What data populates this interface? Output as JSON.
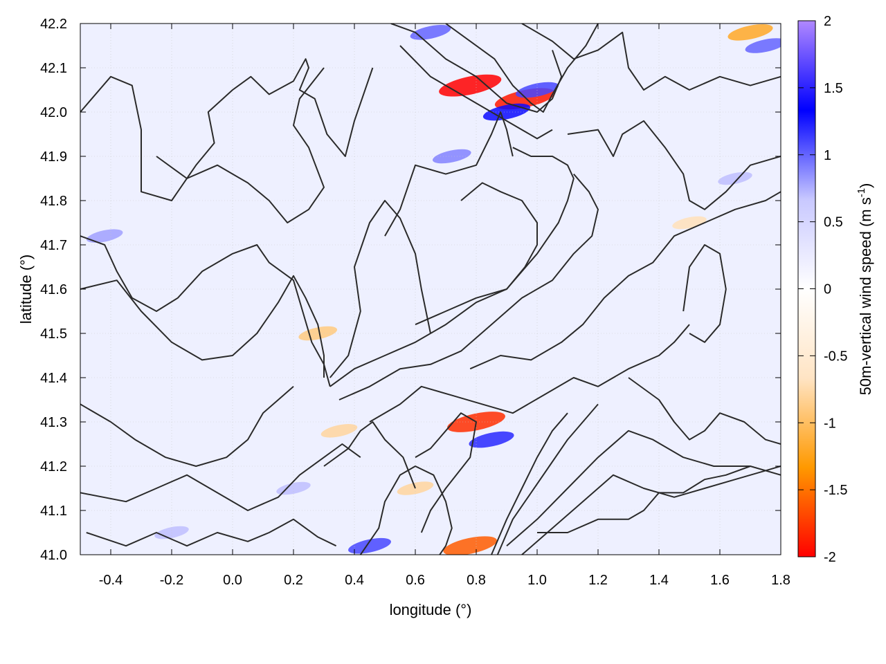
{
  "chart_data": {
    "type": "heatmap",
    "xlabel": "longitude (°)",
    "ylabel": "latitude (°)",
    "colorbar_label": "50m-vertical wind speed (m s",
    "colorbar_label_sup": "-1",
    "colorbar_label_close": ")",
    "xlim": [
      -0.5,
      1.8
    ],
    "ylim": [
      41.0,
      42.2
    ],
    "x_ticks": [
      "-0.4",
      "-0.2",
      "0.0",
      "0.2",
      "0.4",
      "0.6",
      "0.8",
      "1.0",
      "1.2",
      "1.4",
      "1.6",
      "1.8"
    ],
    "y_ticks": [
      "41.0",
      "41.1",
      "41.2",
      "41.3",
      "41.4",
      "41.5",
      "41.6",
      "41.7",
      "41.8",
      "41.9",
      "42.0",
      "42.1",
      "42.2"
    ],
    "colorbar_ticks": [
      "2",
      "1.5",
      "1",
      "0.5",
      "0",
      "-0.5",
      "-1",
      "-1.5",
      "-2"
    ],
    "clim": [
      -2,
      2
    ],
    "grid": true,
    "colormap": [
      "#ff0000",
      "#ff9900",
      "#ffe4c4",
      "#ffffff",
      "#c8c8ff",
      "#0000ff",
      "#b088ff"
    ],
    "contour_color": "#2a2a2a",
    "hotspots": [
      {
        "lon": 0.78,
        "lat": 42.06,
        "value": -2.0
      },
      {
        "lon": 0.96,
        "lat": 42.03,
        "value": -1.9
      },
      {
        "lon": 0.9,
        "lat": 42.0,
        "value": 1.3
      },
      {
        "lon": 1.0,
        "lat": 42.05,
        "value": 1.1
      },
      {
        "lon": 0.8,
        "lat": 41.3,
        "value": -1.8
      },
      {
        "lon": 0.85,
        "lat": 41.26,
        "value": 1.2
      },
      {
        "lon": 0.78,
        "lat": 41.02,
        "value": -1.6
      },
      {
        "lon": 0.45,
        "lat": 41.02,
        "value": 1.1
      },
      {
        "lon": 1.7,
        "lat": 42.18,
        "value": -1.2
      },
      {
        "lon": 1.75,
        "lat": 42.15,
        "value": 1.0
      },
      {
        "lon": 0.65,
        "lat": 42.18,
        "value": 1.0
      },
      {
        "lon": 0.28,
        "lat": 41.5,
        "value": -0.9
      },
      {
        "lon": -0.42,
        "lat": 41.72,
        "value": 0.8
      },
      {
        "lon": 0.72,
        "lat": 41.9,
        "value": 0.9
      },
      {
        "lon": 0.35,
        "lat": 41.28,
        "value": -0.8
      },
      {
        "lon": 0.6,
        "lat": 41.15,
        "value": -0.8
      },
      {
        "lon": 1.5,
        "lat": 41.75,
        "value": -0.7
      },
      {
        "lon": 1.65,
        "lat": 41.85,
        "value": 0.7
      },
      {
        "lon": 0.2,
        "lat": 41.15,
        "value": 0.7
      },
      {
        "lon": -0.2,
        "lat": 41.05,
        "value": 0.7
      }
    ],
    "contours": [
      {
        "lon": [
          -0.5,
          -0.4,
          -0.33,
          -0.3,
          -0.3,
          -0.2,
          -0.12,
          -0.06,
          -0.08,
          0.0,
          0.06,
          0.12,
          0.2,
          0.24,
          0.25,
          0.22,
          0.27,
          0.31,
          0.37,
          0.4,
          0.46
        ],
        "lat": [
          42.0,
          42.08,
          42.06,
          41.96,
          41.82,
          41.8,
          41.88,
          41.93,
          42.0,
          42.05,
          42.08,
          42.04,
          42.07,
          42.12,
          42.1,
          42.05,
          42.03,
          41.95,
          41.9,
          41.98,
          42.1
        ]
      },
      {
        "lon": [
          -0.25,
          -0.15,
          -0.05,
          0.05,
          0.12,
          0.18,
          0.25,
          0.3,
          0.25,
          0.2,
          0.22,
          0.3
        ],
        "lat": [
          41.9,
          41.85,
          41.88,
          41.84,
          41.8,
          41.75,
          41.78,
          41.83,
          41.92,
          41.97,
          42.03,
          42.1
        ]
      },
      {
        "lon": [
          -0.5,
          -0.42,
          -0.38,
          -0.33,
          -0.25,
          -0.18,
          -0.1,
          0.0,
          0.08,
          0.12,
          0.2,
          0.23,
          0.26,
          0.3,
          0.32
        ],
        "lat": [
          41.72,
          41.7,
          41.64,
          41.58,
          41.55,
          41.58,
          41.64,
          41.68,
          41.7,
          41.66,
          41.62,
          41.55,
          41.48,
          41.43,
          41.38
        ]
      },
      {
        "lon": [
          -0.5,
          -0.38,
          -0.3,
          -0.2,
          -0.1,
          0.0,
          0.08,
          0.15,
          0.2,
          0.24,
          0.28,
          0.3,
          0.3
        ],
        "lat": [
          41.6,
          41.62,
          41.55,
          41.48,
          41.44,
          41.45,
          41.5,
          41.57,
          41.63,
          41.58,
          41.52,
          41.45,
          41.4
        ]
      },
      {
        "lon": [
          -0.5,
          -0.4,
          -0.32,
          -0.22,
          -0.12,
          -0.02,
          0.05,
          0.1,
          0.15,
          0.2
        ],
        "lat": [
          41.34,
          41.3,
          41.26,
          41.22,
          41.2,
          41.22,
          41.26,
          41.32,
          41.35,
          41.38
        ]
      },
      {
        "lon": [
          -0.5,
          -0.35,
          -0.25,
          -0.15,
          -0.05,
          0.05,
          0.15,
          0.22,
          0.3,
          0.36,
          0.42
        ],
        "lat": [
          41.14,
          41.12,
          41.15,
          41.18,
          41.14,
          41.1,
          41.13,
          41.18,
          41.22,
          41.25,
          41.22
        ]
      },
      {
        "lon": [
          -0.48,
          -0.35,
          -0.25,
          -0.15,
          -0.05,
          0.05,
          0.12,
          0.2,
          0.28,
          0.34
        ],
        "lat": [
          41.05,
          41.02,
          41.05,
          41.02,
          41.05,
          41.03,
          41.05,
          41.08,
          41.04,
          41.02
        ]
      },
      {
        "lon": [
          0.32,
          0.38,
          0.42,
          0.4,
          0.45,
          0.5,
          0.55,
          0.6,
          0.62,
          0.65
        ],
        "lat": [
          41.4,
          41.45,
          41.55,
          41.65,
          41.75,
          41.8,
          41.76,
          41.68,
          41.6,
          41.5
        ]
      },
      {
        "lon": [
          0.32,
          0.4,
          0.5,
          0.6,
          0.7,
          0.8,
          0.9,
          1.0,
          1.07,
          1.1,
          1.12,
          1.1,
          1.05,
          0.98,
          0.92
        ],
        "lat": [
          41.38,
          41.42,
          41.45,
          41.48,
          41.52,
          41.57,
          41.6,
          41.68,
          41.75,
          41.8,
          41.85,
          41.88,
          41.9,
          41.9,
          41.92
        ]
      },
      {
        "lon": [
          0.35,
          0.45,
          0.55,
          0.65,
          0.75,
          0.85,
          0.95,
          1.05,
          1.12,
          1.18,
          1.2,
          1.17,
          1.12
        ],
        "lat": [
          41.35,
          41.38,
          41.42,
          41.43,
          41.46,
          41.52,
          41.58,
          41.62,
          41.68,
          41.72,
          41.78,
          41.82,
          41.86
        ]
      },
      {
        "lon": [
          0.6,
          0.7,
          0.8,
          0.9,
          0.96,
          1.0,
          1.0,
          0.95,
          0.88,
          0.82,
          0.75
        ],
        "lat": [
          41.52,
          41.55,
          41.58,
          41.6,
          41.65,
          41.7,
          41.75,
          41.8,
          41.82,
          41.84,
          41.8
        ]
      },
      {
        "lon": [
          0.5,
          0.55,
          0.6,
          0.7,
          0.8,
          0.85,
          0.88,
          0.9,
          0.92
        ],
        "lat": [
          41.72,
          41.78,
          41.88,
          41.86,
          41.88,
          41.95,
          42.0,
          41.96,
          41.9
        ]
      },
      {
        "lon": [
          0.52,
          0.6,
          0.7,
          0.8,
          0.9,
          1.0,
          1.05,
          1.08,
          1.05
        ],
        "lat": [
          42.2,
          42.18,
          42.12,
          42.08,
          42.02,
          42.0,
          42.03,
          42.08,
          42.14
        ]
      },
      {
        "lon": [
          0.55,
          0.65,
          0.75,
          0.85,
          0.95,
          1.0,
          1.05
        ],
        "lat": [
          42.15,
          42.08,
          42.04,
          42.0,
          41.96,
          41.94,
          41.96
        ]
      },
      {
        "lon": [
          0.7,
          0.78,
          0.86,
          0.92,
          0.98,
          1.02,
          1.05,
          1.1,
          1.16,
          1.2
        ],
        "lat": [
          42.2,
          42.16,
          42.12,
          42.06,
          42.02,
          42.0,
          42.04,
          42.1,
          42.15,
          42.2
        ]
      },
      {
        "lon": [
          0.95,
          1.05,
          1.12,
          1.2,
          1.28,
          1.3,
          1.35,
          1.42,
          1.5,
          1.6,
          1.7,
          1.8
        ],
        "lat": [
          42.2,
          42.16,
          42.12,
          42.14,
          42.18,
          42.1,
          42.05,
          42.08,
          42.05,
          42.08,
          42.06,
          42.08
        ]
      },
      {
        "lon": [
          1.1,
          1.2,
          1.25,
          1.28,
          1.35,
          1.42,
          1.48,
          1.5,
          1.55,
          1.62,
          1.7,
          1.8
        ],
        "lat": [
          41.95,
          41.96,
          41.9,
          41.95,
          41.98,
          41.92,
          41.86,
          41.8,
          41.78,
          41.82,
          41.88,
          41.9
        ]
      },
      {
        "lon": [
          0.78,
          0.88,
          0.98,
          1.08,
          1.15,
          1.22,
          1.3,
          1.38,
          1.45,
          1.55,
          1.65,
          1.75,
          1.8
        ],
        "lat": [
          41.42,
          41.45,
          41.44,
          41.48,
          41.52,
          41.58,
          41.63,
          41.66,
          41.72,
          41.75,
          41.78,
          41.8,
          41.82
        ]
      },
      {
        "lon": [
          0.45,
          0.55,
          0.62,
          0.72,
          0.82,
          0.92,
          1.02,
          1.12,
          1.2,
          1.3,
          1.4,
          1.45,
          1.5
        ],
        "lat": [
          41.3,
          41.34,
          41.38,
          41.36,
          41.34,
          41.32,
          41.36,
          41.4,
          41.38,
          41.42,
          41.45,
          41.48,
          41.52
        ]
      },
      {
        "lon": [
          1.3,
          1.4,
          1.45,
          1.5,
          1.55,
          1.6,
          1.68,
          1.75,
          1.8
        ],
        "lat": [
          41.4,
          41.35,
          41.3,
          41.26,
          41.28,
          41.32,
          41.3,
          41.26,
          41.25
        ]
      },
      {
        "lon": [
          0.9,
          1.0,
          1.1,
          1.2,
          1.3,
          1.38,
          1.48,
          1.58,
          1.7,
          1.8
        ],
        "lat": [
          41.02,
          41.08,
          41.15,
          41.22,
          41.28,
          41.26,
          41.22,
          41.2,
          41.2,
          41.18
        ]
      },
      {
        "lon": [
          0.95,
          1.05,
          1.15,
          1.25,
          1.35,
          1.45,
          1.55,
          1.65,
          1.75,
          1.8
        ],
        "lat": [
          41.0,
          41.06,
          41.12,
          41.18,
          41.15,
          41.13,
          41.15,
          41.17,
          41.19,
          41.2
        ]
      },
      {
        "lon": [
          1.0,
          1.1,
          1.2,
          1.3,
          1.35,
          1.4,
          1.48,
          1.55,
          1.62,
          1.7
        ],
        "lat": [
          41.05,
          41.05,
          41.08,
          41.08,
          41.1,
          41.14,
          41.14,
          41.17,
          41.18,
          41.2
        ]
      },
      {
        "lon": [
          0.6,
          0.65,
          0.7,
          0.75,
          0.8,
          0.78,
          0.7,
          0.65,
          0.62
        ],
        "lat": [
          41.22,
          41.24,
          41.28,
          41.32,
          41.3,
          41.22,
          41.15,
          41.1,
          41.05
        ]
      },
      {
        "lon": [
          0.42,
          0.48,
          0.5,
          0.55,
          0.6,
          0.66,
          0.7,
          0.72,
          0.7,
          0.68
        ],
        "lat": [
          41.0,
          41.06,
          41.12,
          41.18,
          41.2,
          41.18,
          41.12,
          41.06,
          41.02,
          41.0
        ]
      },
      {
        "lon": [
          0.3,
          0.38,
          0.42,
          0.46,
          0.5,
          0.56,
          0.6
        ],
        "lat": [
          41.2,
          41.24,
          41.28,
          41.3,
          41.26,
          41.22,
          41.15
        ]
      },
      {
        "lon": [
          0.85,
          0.9,
          0.95,
          1.0,
          1.05,
          1.1
        ],
        "lat": [
          41.0,
          41.08,
          41.15,
          41.22,
          41.28,
          41.32
        ]
      },
      {
        "lon": [
          0.87,
          0.92,
          0.98,
          1.04,
          1.1,
          1.15,
          1.2
        ],
        "lat": [
          41.0,
          41.08,
          41.14,
          41.2,
          41.26,
          41.3,
          41.34
        ]
      },
      {
        "lon": [
          1.5,
          1.55,
          1.6,
          1.62,
          1.6,
          1.55,
          1.5,
          1.48
        ],
        "lat": [
          41.5,
          41.48,
          41.52,
          41.6,
          41.68,
          41.7,
          41.65,
          41.55
        ]
      }
    ]
  }
}
